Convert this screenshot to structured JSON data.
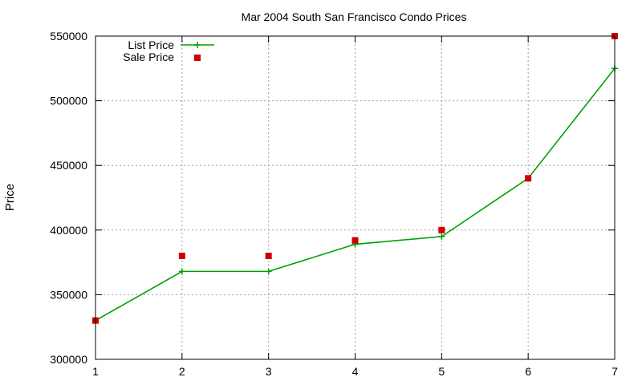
{
  "chart_data": {
    "type": "line",
    "title": "Mar 2004 South San Francisco Condo Prices",
    "xlabel": "",
    "ylabel": "Price",
    "x": [
      1,
      2,
      3,
      4,
      5,
      6,
      7
    ],
    "xlim": [
      1,
      7
    ],
    "ylim": [
      300000,
      550000
    ],
    "x_ticks": [
      "1",
      "2",
      "3",
      "4",
      "5",
      "6",
      "7"
    ],
    "y_ticks": [
      "300000",
      "350000",
      "400000",
      "450000",
      "500000",
      "550000"
    ],
    "grid": true,
    "legend_position": "top-left",
    "series": [
      {
        "name": "List Price",
        "style": "line-with-plus-markers",
        "color": "#00a000",
        "values": [
          330000,
          368000,
          368000,
          389000,
          395000,
          440000,
          525000
        ]
      },
      {
        "name": "Sale Price",
        "style": "square-points",
        "color": "#cc0000",
        "values": [
          330000,
          380000,
          380000,
          392000,
          400000,
          440000,
          550000
        ]
      }
    ]
  }
}
